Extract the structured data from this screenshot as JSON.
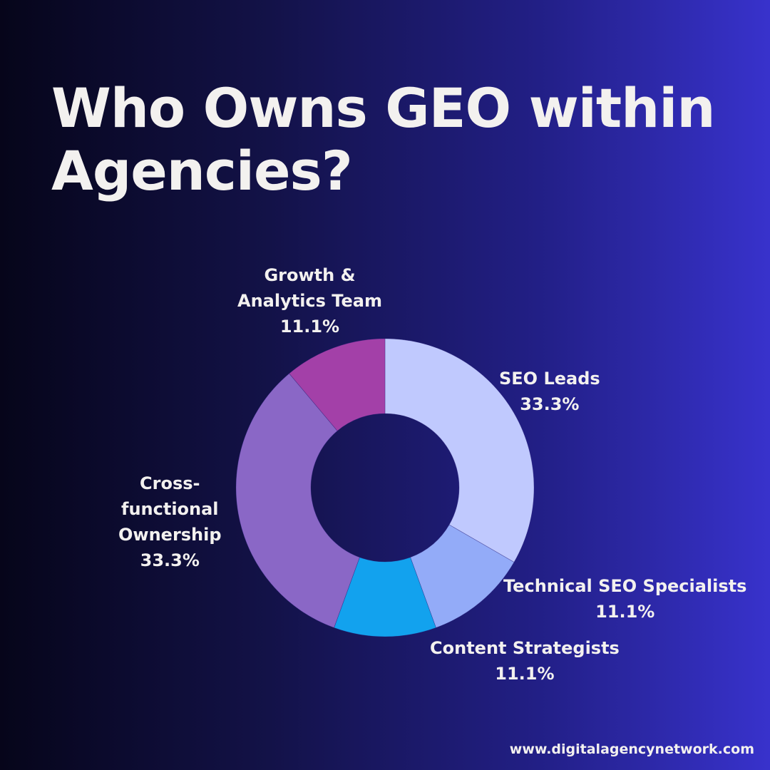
{
  "title_lines": [
    "Who Owns GEO within",
    "Agencies?"
  ],
  "footer": "www.digitalagencynetwork.com",
  "chart_data": {
    "type": "pie",
    "donut": true,
    "title": "Who Owns GEO within Agencies?",
    "slices": [
      {
        "label": "SEO Leads",
        "value": 33.3,
        "value_label": "33.3%",
        "color": "#c0c9fe",
        "label_lines": [
          "SEO Leads"
        ]
      },
      {
        "label": "Technical SEO Specialists",
        "value": 11.1,
        "value_label": "11.1%",
        "color": "#93abf8",
        "label_lines": [
          "Technical SEO Specialists"
        ]
      },
      {
        "label": "Content Strategists",
        "value": 11.1,
        "value_label": "11.1%",
        "color": "#12a2ee",
        "label_lines": [
          "Content Strategists"
        ]
      },
      {
        "label": "Cross-functional Ownership",
        "value": 33.3,
        "value_label": "33.3%",
        "color": "#8a67c6",
        "label_lines": [
          "Cross-",
          "functional",
          "Ownership"
        ]
      },
      {
        "label": "Growth & Analytics Team",
        "value": 11.1,
        "value_label": "11.1%",
        "color": "#a340a8",
        "label_lines": [
          "Growth &",
          "Analytics Team"
        ]
      }
    ]
  }
}
